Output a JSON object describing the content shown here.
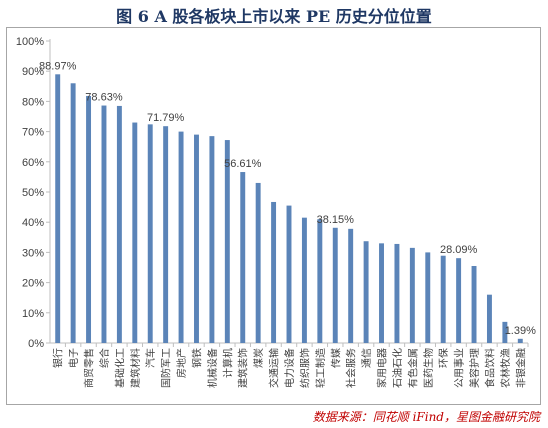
{
  "title": "图 6 A 股各板块上市以来 PE 历史分位位置",
  "source": "数据来源：同花顺 iFind，星图金融研究院",
  "colors": {
    "bar": "#5b84b8",
    "axis": "#bfbfbf",
    "text": "#404040",
    "title": "#1f3864",
    "source": "#c00000"
  },
  "chart_data": {
    "type": "bar",
    "categories": [
      "银行",
      "电子",
      "商贸零售",
      "综合",
      "基础化工",
      "建筑材料",
      "汽车",
      "国防军工",
      "房地产",
      "钢铁",
      "机械设备",
      "计算机",
      "建筑装饰",
      "煤炭",
      "交通运输",
      "电力设备",
      "纺织服饰",
      "轻工制造",
      "传媒",
      "社会服务",
      "通信",
      "家用电器",
      "石油石化",
      "有色金属",
      "医药生物",
      "环保",
      "公用事业",
      "美容护理",
      "食品饮料",
      "农林牧渔",
      "非银金融"
    ],
    "values": [
      88.97,
      86.0,
      81.8,
      78.63,
      78.5,
      73.0,
      72.4,
      71.79,
      70.0,
      69.0,
      68.5,
      67.2,
      56.61,
      53.0,
      46.7,
      45.5,
      41.5,
      41.0,
      38.15,
      37.8,
      33.7,
      33.0,
      32.8,
      31.5,
      30.0,
      28.9,
      28.09,
      25.5,
      16.0,
      7.0,
      1.39
    ],
    "data_labels": [
      "88.97%",
      "",
      "",
      "78.63%",
      "",
      "",
      "",
      "71.79%",
      "",
      "",
      "",
      "",
      "56.61%",
      "",
      "",
      "",
      "",
      "",
      "38.15%",
      "",
      "",
      "",
      "",
      "",
      "",
      "",
      "28.09%",
      "",
      "",
      "",
      "1.39%"
    ],
    "ylim": [
      0,
      100
    ],
    "yticks": [
      "0%",
      "10%",
      "20%",
      "30%",
      "40%",
      "50%",
      "60%",
      "70%",
      "80%",
      "90%",
      "100%"
    ],
    "grid": false,
    "xlabel": "",
    "ylabel": ""
  }
}
